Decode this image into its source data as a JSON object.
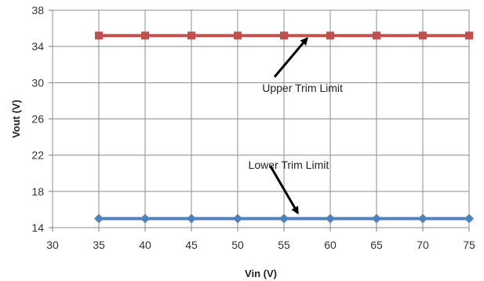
{
  "chart_data": {
    "type": "line",
    "title": "",
    "xlabel": "Vin (V)",
    "ylabel": "Vout (V)",
    "xlim": [
      30,
      75
    ],
    "ylim": [
      14,
      38
    ],
    "xticks": [
      30,
      35,
      40,
      45,
      50,
      55,
      60,
      65,
      70,
      75
    ],
    "yticks": [
      14,
      18,
      22,
      26,
      30,
      34,
      38
    ],
    "grid": true,
    "legend": "none",
    "series": [
      {
        "id": "upper",
        "color": "#C0504D",
        "marker": "square",
        "x": [
          35,
          40,
          45,
          50,
          55,
          60,
          65,
          70,
          75
        ],
        "y": [
          35.2,
          35.2,
          35.2,
          35.2,
          35.2,
          35.2,
          35.2,
          35.2,
          35.2
        ]
      },
      {
        "id": "lower",
        "color": "#4F81BD",
        "marker": "diamond",
        "x": [
          35,
          40,
          45,
          50,
          55,
          60,
          65,
          70,
          75
        ],
        "y": [
          15,
          15,
          15,
          15,
          15,
          15,
          15,
          15,
          15
        ]
      }
    ],
    "annotations": [
      {
        "id": "upper-label",
        "text": "Upper Trim Limit",
        "text_x": 57,
        "text_y": 29,
        "arrow_to": [
          57.5,
          34.9
        ]
      },
      {
        "id": "lower-label",
        "text": "Lower Trim Limit",
        "text_x": 55.5,
        "text_y": 20.5,
        "arrow_to": [
          56.5,
          15.6
        ]
      }
    ]
  }
}
